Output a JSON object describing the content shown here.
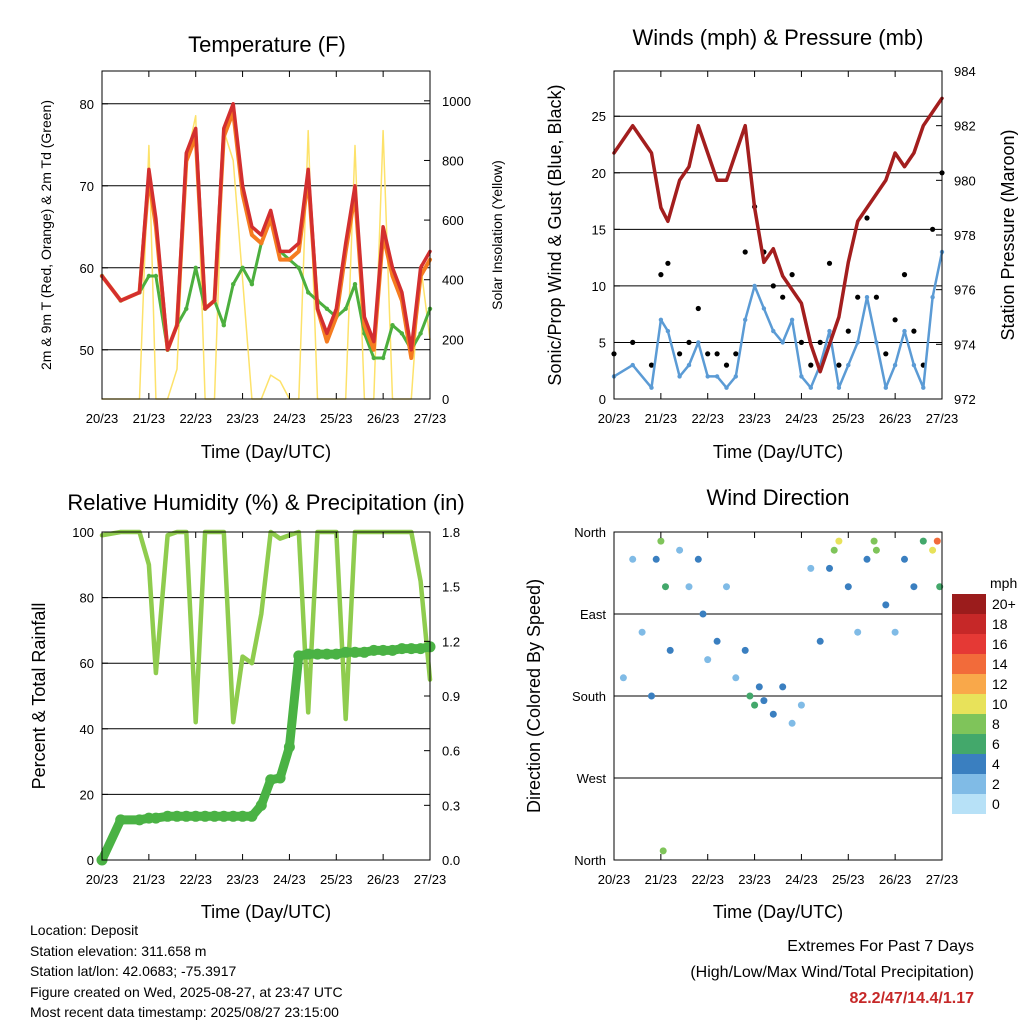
{
  "colors": {
    "red": "#d32f2f",
    "orange": "#f57c20",
    "green": "#4caf3e",
    "yellow": "#fde26a",
    "maroon": "#a31e1e",
    "blue": "#5b9bd5",
    "black": "#000000",
    "rh": "#8fcc4e",
    "rain": "#4ab244"
  },
  "charts": {
    "temperature": {
      "title": "Temperature (F)",
      "xlabel": "Time (Day/UTC)",
      "ylabel_left": "2m & 9m T (Red, Orange) & 2m Td (Green)",
      "ylabel_right": "Solar Insolation (Yellow)",
      "left_ticks": [
        "50",
        "60",
        "70",
        "80"
      ],
      "right_ticks": [
        "0",
        "200",
        "400",
        "600",
        "800",
        "1000"
      ]
    },
    "winds": {
      "title": "Winds (mph) & Pressure (mb)",
      "xlabel": "Time (Day/UTC)",
      "ylabel_left": "Sonic/Prop Wind & Gust (Blue, Black)",
      "ylabel_right": "Station Pressure (Maroon)",
      "left_ticks": [
        "0",
        "5",
        "10",
        "15",
        "20",
        "25"
      ],
      "right_ticks": [
        "972",
        "974",
        "976",
        "978",
        "980",
        "982",
        "984"
      ]
    },
    "humidity": {
      "title": "Relative Humidity (%) & Precipitation (in)",
      "xlabel": "Time (Day/UTC)",
      "ylabel_left": "Percent & Total Rainfall",
      "left_ticks": [
        "0",
        "20",
        "40",
        "60",
        "80",
        "100"
      ],
      "right_ticks": [
        "0.0",
        "0.3",
        "0.6",
        "0.9",
        "1.2",
        "1.5",
        "1.8"
      ]
    },
    "direction": {
      "title": "Wind Direction",
      "xlabel": "Time (Day/UTC)",
      "ylabel_left": "Direction (Colored By Speed)",
      "dir_ticks": [
        "North",
        "East",
        "South",
        "West",
        "North"
      ],
      "legend_title": "mph",
      "legend_labels": [
        "20+",
        "18",
        "16",
        "14",
        "12",
        "10",
        "8",
        "6",
        "4",
        "2",
        "0"
      ],
      "legend_colors": [
        "#9b1c1c",
        "#c62828",
        "#e53935",
        "#f26b3a",
        "#f9a84a",
        "#e8e25a",
        "#7fc45a",
        "#43a86b",
        "#3a7fc0",
        "#80bbe6",
        "#b7e1f7"
      ]
    }
  },
  "x_ticks": [
    "20/23",
    "21/23",
    "22/23",
    "23/23",
    "24/23",
    "25/23",
    "26/23",
    "27/23"
  ],
  "station": {
    "location": "Location: Deposit",
    "elevation": "Station elevation: 311.658 m",
    "latlon": "Station lat/lon: 42.0683; -75.3917",
    "created": "Figure created on Wed, 2025-08-27, at 23:47 UTC",
    "timestamp": "Most recent data timestamp: 2025/08/27 23:15:00"
  },
  "extremes": {
    "heading": "Extremes For Past 7 Days",
    "subheading": "(High/Low/Max Wind/Total Precipitation)",
    "values": "82.2/47/14.4/1.17"
  },
  "chart_data": [
    {
      "type": "line",
      "title": "Temperature (F)",
      "xlabel": "Time (Day/UTC)",
      "x_days": [
        0,
        0.4,
        0.8,
        1,
        1.15,
        1.4,
        1.6,
        1.8,
        2,
        2.2,
        2.4,
        2.6,
        2.8,
        3,
        3.2,
        3.4,
        3.6,
        3.8,
        4,
        4.2,
        4.4,
        4.6,
        4.8,
        5,
        5.2,
        5.4,
        5.6,
        5.8,
        6,
        6.2,
        6.4,
        6.6,
        6.8,
        7
      ],
      "ylim": [
        44,
        84
      ],
      "y2lim": [
        0,
        1100
      ],
      "series": [
        {
          "name": "2m T (Red)",
          "axis": "left",
          "values": [
            59,
            56,
            57,
            72,
            66,
            50,
            53,
            74,
            77,
            55,
            56,
            77,
            80,
            70,
            65,
            64,
            67,
            62,
            62,
            63,
            72,
            55,
            52,
            55,
            63,
            70,
            54,
            51,
            65,
            60,
            57,
            50,
            60,
            62
          ]
        },
        {
          "name": "9m T (Orange)",
          "axis": "left",
          "values": [
            59,
            56,
            57,
            71,
            65,
            50,
            53,
            73,
            76,
            55,
            56,
            76,
            79,
            69,
            64,
            63,
            66,
            61,
            61,
            62,
            71,
            55,
            51,
            54,
            62,
            69,
            53,
            50,
            64,
            59,
            56,
            49,
            59,
            61
          ]
        },
        {
          "name": "2m Td (Green)",
          "axis": "left",
          "values": [
            59,
            56,
            57,
            59,
            59,
            50,
            53,
            55,
            60,
            55,
            56,
            53,
            58,
            60,
            58,
            63,
            66,
            62,
            61,
            60,
            57,
            56,
            55,
            54,
            55,
            58,
            52,
            49,
            49,
            53,
            52,
            50,
            52,
            55
          ]
        },
        {
          "name": "Solar Insolation (Yellow)",
          "axis": "right",
          "values": [
            0,
            0,
            0,
            850,
            0,
            0,
            100,
            800,
            950,
            0,
            0,
            900,
            800,
            400,
            0,
            0,
            80,
            60,
            0,
            0,
            900,
            0,
            0,
            0,
            0,
            850,
            0,
            0,
            900,
            0,
            0,
            0,
            450,
            200
          ]
        }
      ]
    },
    {
      "type": "line",
      "title": "Winds (mph) & Pressure (mb)",
      "xlabel": "Time (Day/UTC)",
      "x_days": [
        0,
        0.4,
        0.8,
        1,
        1.15,
        1.4,
        1.6,
        1.8,
        2,
        2.2,
        2.4,
        2.6,
        2.8,
        3,
        3.2,
        3.4,
        3.6,
        3.8,
        4,
        4.2,
        4.4,
        4.6,
        4.8,
        5,
        5.2,
        5.4,
        5.6,
        5.8,
        6,
        6.2,
        6.4,
        6.6,
        6.8,
        7
      ],
      "ylim": [
        0,
        29
      ],
      "y2lim": [
        972,
        984
      ],
      "series": [
        {
          "name": "Sonic/Prop Wind (Blue)",
          "axis": "left",
          "values": [
            2,
            3,
            1,
            7,
            6,
            2,
            3,
            5,
            2,
            2,
            1,
            2,
            7,
            10,
            8,
            6,
            5,
            7,
            2,
            1,
            3,
            6,
            1,
            3,
            5,
            9,
            5,
            1,
            3,
            6,
            3,
            1,
            9,
            13
          ]
        },
        {
          "name": "Gust (Black)",
          "axis": "left",
          "values": [
            4,
            5,
            3,
            11,
            12,
            4,
            5,
            8,
            4,
            4,
            3,
            4,
            13,
            17,
            13,
            10,
            9,
            11,
            5,
            3,
            5,
            12,
            3,
            6,
            9,
            16,
            9,
            4,
            7,
            11,
            6,
            3,
            15,
            20
          ]
        },
        {
          "name": "Station Pressure (Maroon)",
          "axis": "right",
          "values": [
            981,
            982,
            981,
            979,
            978.5,
            980,
            980.5,
            982,
            981,
            980,
            980,
            981,
            982,
            979,
            977,
            977.5,
            976.5,
            976,
            975.5,
            974,
            973,
            974,
            975,
            977,
            978.5,
            979,
            979.5,
            980,
            981,
            980.5,
            981,
            982,
            982.5,
            983
          ]
        }
      ]
    },
    {
      "type": "line",
      "title": "Relative Humidity (%) & Precipitation (in)",
      "xlabel": "Time (Day/UTC)",
      "x_days": [
        0,
        0.4,
        0.8,
        1,
        1.15,
        1.4,
        1.6,
        1.8,
        2,
        2.2,
        2.4,
        2.6,
        2.8,
        3,
        3.2,
        3.4,
        3.6,
        3.8,
        4,
        4.2,
        4.4,
        4.6,
        4.8,
        5,
        5.2,
        5.4,
        5.6,
        5.8,
        6,
        6.2,
        6.4,
        6.6,
        6.8,
        7
      ],
      "ylim": [
        0,
        100
      ],
      "y2lim": [
        0,
        1.8
      ],
      "series": [
        {
          "name": "Relative Humidity",
          "axis": "left",
          "values": [
            99,
            100,
            100,
            90,
            57,
            99,
            100,
            100,
            42,
            100,
            100,
            100,
            42,
            62,
            60,
            75,
            100,
            98,
            99,
            100,
            45,
            100,
            100,
            100,
            43,
            100,
            100,
            100,
            100,
            100,
            100,
            100,
            85,
            55
          ]
        },
        {
          "name": "Total Rainfall",
          "axis": "right",
          "values": [
            0.0,
            0.22,
            0.22,
            0.23,
            0.23,
            0.24,
            0.24,
            0.24,
            0.24,
            0.24,
            0.24,
            0.24,
            0.24,
            0.24,
            0.24,
            0.3,
            0.44,
            0.45,
            0.62,
            1.12,
            1.13,
            1.13,
            1.13,
            1.13,
            1.14,
            1.14,
            1.14,
            1.15,
            1.15,
            1.15,
            1.16,
            1.16,
            1.16,
            1.17
          ]
        }
      ]
    },
    {
      "type": "scatter",
      "title": "Wind Direction",
      "xlabel": "Time (Day/UTC)",
      "ylabel": "Direction (Colored By Speed)",
      "xlim": [
        0,
        7
      ],
      "y_direction_degrees_top_to_bottom": [
        360,
        270,
        180,
        90,
        0
      ],
      "points": [
        {
          "day": 0.2,
          "dir": 200,
          "speed": 1
        },
        {
          "day": 0.4,
          "dir": 330,
          "speed": 2
        },
        {
          "day": 0.6,
          "dir": 250,
          "speed": 2
        },
        {
          "day": 0.8,
          "dir": 180,
          "speed": 3
        },
        {
          "day": 0.9,
          "dir": 330,
          "speed": 4
        },
        {
          "day": 1.0,
          "dir": 350,
          "speed": 7
        },
        {
          "day": 1.05,
          "dir": 10,
          "speed": 8
        },
        {
          "day": 1.1,
          "dir": 300,
          "speed": 6
        },
        {
          "day": 1.2,
          "dir": 230,
          "speed": 3
        },
        {
          "day": 1.4,
          "dir": 340,
          "speed": 2
        },
        {
          "day": 1.6,
          "dir": 300,
          "speed": 2
        },
        {
          "day": 1.8,
          "dir": 330,
          "speed": 4
        },
        {
          "day": 1.9,
          "dir": 270,
          "speed": 3
        },
        {
          "day": 2.0,
          "dir": 220,
          "speed": 2
        },
        {
          "day": 2.2,
          "dir": 240,
          "speed": 3
        },
        {
          "day": 2.4,
          "dir": 300,
          "speed": 2
        },
        {
          "day": 2.6,
          "dir": 200,
          "speed": 2
        },
        {
          "day": 2.8,
          "dir": 230,
          "speed": 3
        },
        {
          "day": 2.9,
          "dir": 180,
          "speed": 6
        },
        {
          "day": 3.0,
          "dir": 170,
          "speed": 5
        },
        {
          "day": 3.1,
          "dir": 190,
          "speed": 4
        },
        {
          "day": 3.2,
          "dir": 175,
          "speed": 4
        },
        {
          "day": 3.4,
          "dir": 160,
          "speed": 4
        },
        {
          "day": 3.6,
          "dir": 190,
          "speed": 3
        },
        {
          "day": 3.8,
          "dir": 150,
          "speed": 2
        },
        {
          "day": 4.0,
          "dir": 170,
          "speed": 2
        },
        {
          "day": 4.2,
          "dir": 320,
          "speed": 2
        },
        {
          "day": 4.4,
          "dir": 240,
          "speed": 3
        },
        {
          "day": 4.6,
          "dir": 320,
          "speed": 4
        },
        {
          "day": 4.7,
          "dir": 340,
          "speed": 7
        },
        {
          "day": 4.8,
          "dir": 350,
          "speed": 9
        },
        {
          "day": 5.0,
          "dir": 300,
          "speed": 3
        },
        {
          "day": 5.2,
          "dir": 250,
          "speed": 2
        },
        {
          "day": 5.4,
          "dir": 330,
          "speed": 4
        },
        {
          "day": 5.55,
          "dir": 350,
          "speed": 7
        },
        {
          "day": 5.6,
          "dir": 340,
          "speed": 8
        },
        {
          "day": 5.8,
          "dir": 280,
          "speed": 3
        },
        {
          "day": 6.0,
          "dir": 250,
          "speed": 2
        },
        {
          "day": 6.2,
          "dir": 330,
          "speed": 3
        },
        {
          "day": 6.4,
          "dir": 300,
          "speed": 4
        },
        {
          "day": 6.6,
          "dir": 350,
          "speed": 6
        },
        {
          "day": 6.8,
          "dir": 340,
          "speed": 9
        },
        {
          "day": 6.9,
          "dir": 350,
          "speed": 14
        },
        {
          "day": 6.95,
          "dir": 300,
          "speed": 5
        }
      ]
    }
  ]
}
